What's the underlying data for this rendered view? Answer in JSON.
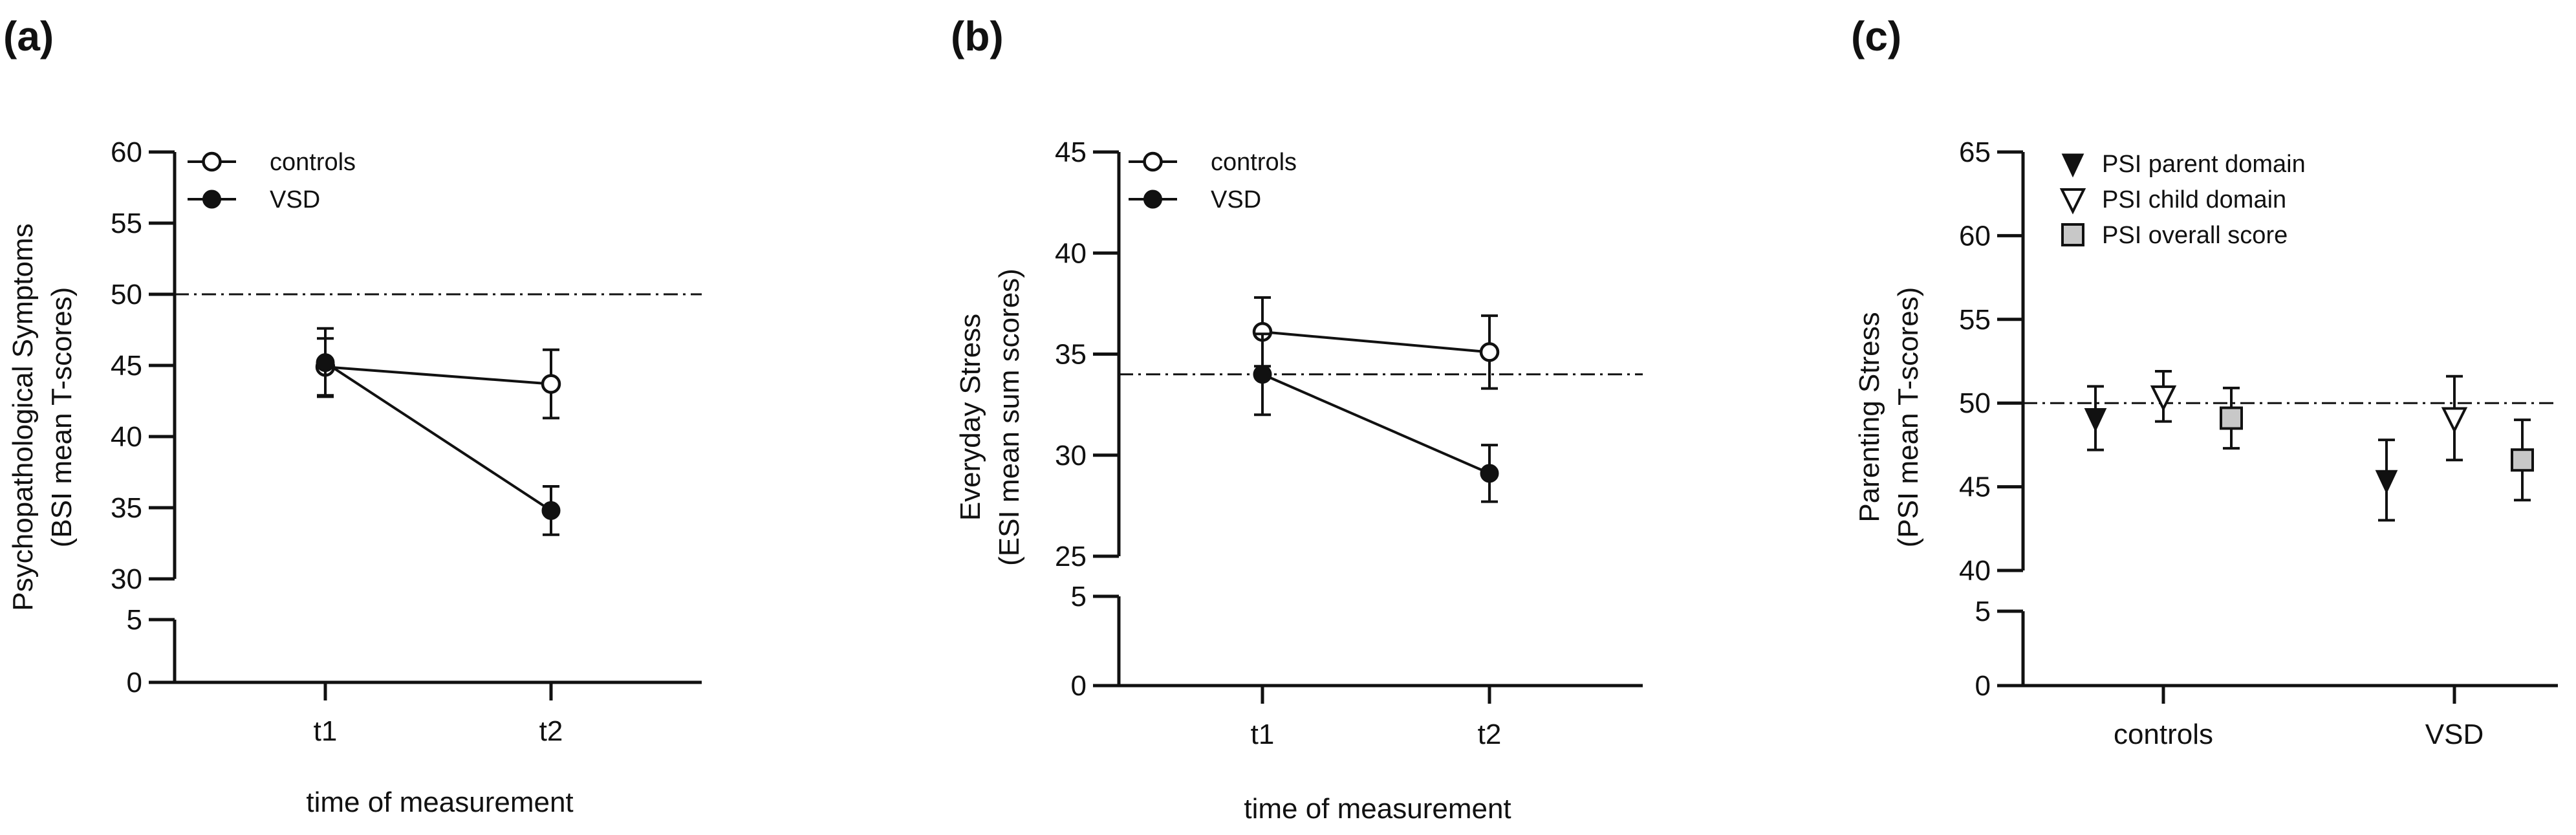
{
  "chart_data": [
    {
      "panel_label": "(a)",
      "type": "line",
      "xlabel": "time of measurement",
      "ylabel": [
        "Psychopathological Symptoms",
        "(BSI mean T-scores)"
      ],
      "categories": [
        "t1",
        "t2"
      ],
      "y_axis_break": {
        "lower_range": [
          0,
          5
        ],
        "upper_range": [
          30,
          60
        ]
      },
      "yticks_lower": [
        0,
        5
      ],
      "yticks_upper": [
        30,
        35,
        40,
        45,
        50,
        55,
        60
      ],
      "reference_line": 50,
      "legend": [
        "controls",
        "VSD"
      ],
      "series": [
        {
          "name": "controls",
          "marker": "open-circle",
          "values": [
            44.9,
            43.7
          ],
          "error": [
            2.0,
            2.4
          ]
        },
        {
          "name": "VSD",
          "marker": "filled-circle",
          "values": [
            45.2,
            34.8
          ],
          "error": [
            2.4,
            1.7
          ]
        }
      ]
    },
    {
      "panel_label": "(b)",
      "type": "line",
      "xlabel": "time of measurement",
      "ylabel": [
        "Everyday Stress",
        "(ESI mean sum scores)"
      ],
      "categories": [
        "t1",
        "t2"
      ],
      "y_axis_break": {
        "lower_range": [
          0,
          5
        ],
        "upper_range": [
          25,
          45
        ]
      },
      "yticks_lower": [
        0,
        5
      ],
      "yticks_upper": [
        25,
        30,
        35,
        40,
        45
      ],
      "reference_line": 34,
      "legend": [
        "controls",
        "VSD"
      ],
      "series": [
        {
          "name": "controls",
          "marker": "open-circle",
          "values": [
            36.1,
            35.1
          ],
          "error": [
            1.7,
            1.8
          ]
        },
        {
          "name": "VSD",
          "marker": "filled-circle",
          "values": [
            34.0,
            29.1
          ],
          "error": [
            2.0,
            1.4
          ]
        }
      ]
    },
    {
      "panel_label": "(c)",
      "type": "scatter",
      "xlabel": "",
      "ylabel": [
        "Parenting Stress",
        "(PSI mean T-scores)"
      ],
      "categories": [
        "controls",
        "VSD"
      ],
      "y_axis_break": {
        "lower_range": [
          0,
          5
        ],
        "upper_range": [
          40,
          65
        ]
      },
      "yticks_lower": [
        0,
        5
      ],
      "yticks_upper": [
        40,
        45,
        50,
        55,
        60,
        65
      ],
      "reference_line": 50,
      "legend": [
        "PSI parent domain",
        "PSI child domain",
        "PSI overall score"
      ],
      "series": [
        {
          "name": "PSI parent domain",
          "marker": "filled-triangle-down",
          "values": [
            49.1,
            45.4
          ],
          "error": [
            1.9,
            2.4
          ]
        },
        {
          "name": "PSI child domain",
          "marker": "open-triangle-down",
          "values": [
            50.4,
            49.1
          ],
          "error": [
            1.5,
            2.5
          ]
        },
        {
          "name": "PSI overall score",
          "marker": "gray-square",
          "values": [
            49.1,
            46.6
          ],
          "error": [
            1.8,
            2.4
          ]
        }
      ]
    }
  ]
}
